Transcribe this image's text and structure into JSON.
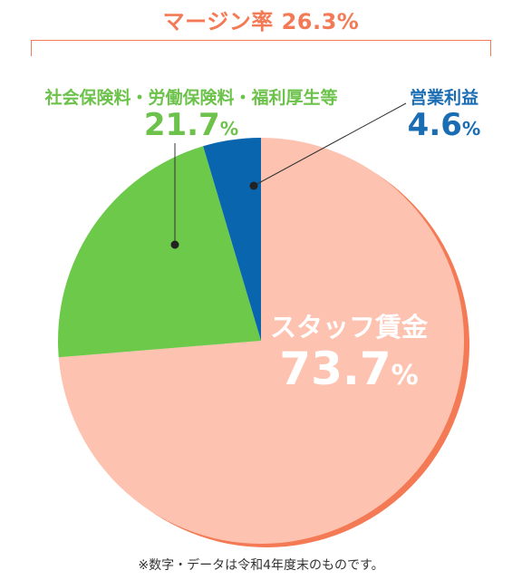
{
  "chart_data": {
    "type": "pie",
    "title": "",
    "slices": [
      {
        "label": "スタッフ賃金",
        "value": 73.7,
        "display": "73.7",
        "unit": "%",
        "color": "#fec3b0"
      },
      {
        "label": "社会保険料・労働保険料・福利厚生等",
        "value": 21.7,
        "display": "21.7",
        "unit": "%",
        "color": "#6cc94a"
      },
      {
        "label": "営業利益",
        "value": 4.6,
        "display": "4.6",
        "unit": "%",
        "color": "#0966ae"
      }
    ],
    "start": "12 o'clock",
    "direction": "clockwise",
    "accent_color": "#f47a55"
  },
  "margin": {
    "label": "マージン率",
    "value": "26.3%"
  },
  "footnote": "※数字・データは令和4年度末のものです。"
}
